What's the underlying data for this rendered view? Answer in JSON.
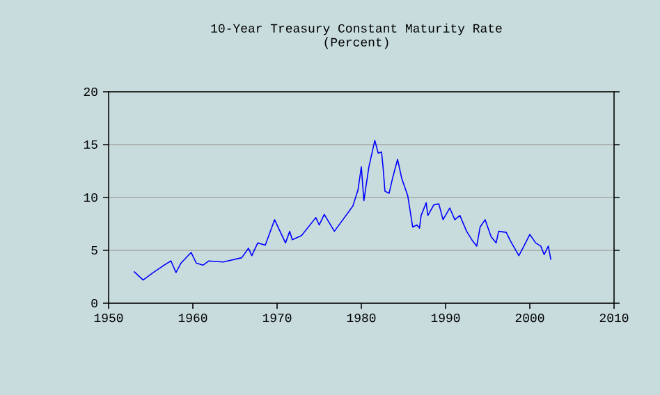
{
  "chart_data": {
    "type": "line",
    "title": "10-Year Treasury Constant Maturity Rate",
    "subtitle": "(Percent)",
    "x": [
      1953.0,
      1954.1,
      1955.3,
      1956.4,
      1957.4,
      1958.0,
      1958.6,
      1959.8,
      1960.4,
      1961.2,
      1961.9,
      1963.6,
      1965.8,
      1966.6,
      1967.0,
      1967.7,
      1968.6,
      1969.7,
      1971.0,
      1971.5,
      1971.8,
      1972.9,
      1974.6,
      1975.0,
      1975.6,
      1976.8,
      1979.0,
      1979.6,
      1980.0,
      1980.3,
      1980.9,
      1981.6,
      1982.0,
      1982.4,
      1982.6,
      1982.8,
      1983.3,
      1983.7,
      1984.3,
      1984.8,
      1985.5,
      1986.1,
      1986.6,
      1986.9,
      1987.1,
      1987.7,
      1987.9,
      1988.6,
      1989.2,
      1989.7,
      1990.5,
      1991.1,
      1991.7,
      1992.5,
      1993.2,
      1993.7,
      1994.1,
      1994.7,
      1995.4,
      1996.0,
      1996.3,
      1997.2,
      1997.7,
      1998.7,
      1999.3,
      2000.0,
      2000.7,
      2001.3,
      2001.7,
      2002.2,
      2002.5
    ],
    "series": [
      {
        "color": "#0000ff",
        "values": [
          3.0,
          2.2,
          2.9,
          3.5,
          4.0,
          2.9,
          3.8,
          4.8,
          3.8,
          3.6,
          4.0,
          3.9,
          4.3,
          5.2,
          4.5,
          5.7,
          5.5,
          7.9,
          5.7,
          6.8,
          6.0,
          6.4,
          8.1,
          7.4,
          8.4,
          6.8,
          9.2,
          10.7,
          12.9,
          9.7,
          12.9,
          15.4,
          14.2,
          14.3,
          12.7,
          10.6,
          10.4,
          11.8,
          13.6,
          11.8,
          10.2,
          7.2,
          7.4,
          7.1,
          8.3,
          9.5,
          8.3,
          9.3,
          9.4,
          7.9,
          9.0,
          7.9,
          8.3,
          6.8,
          5.9,
          5.4,
          7.2,
          7.9,
          6.3,
          5.7,
          6.8,
          6.7,
          5.9,
          4.5,
          5.4,
          6.5,
          5.7,
          5.4,
          4.6,
          5.4,
          4.1
        ]
      }
    ],
    "xlim": [
      1950,
      2010
    ],
    "ylim": [
      0,
      20
    ],
    "xticks": [
      1950,
      1960,
      1970,
      1980,
      1990,
      2000,
      2010
    ],
    "yticks": [
      0,
      5,
      10,
      15,
      20
    ],
    "grid": "y",
    "marker": "none",
    "line_style": "solid"
  }
}
